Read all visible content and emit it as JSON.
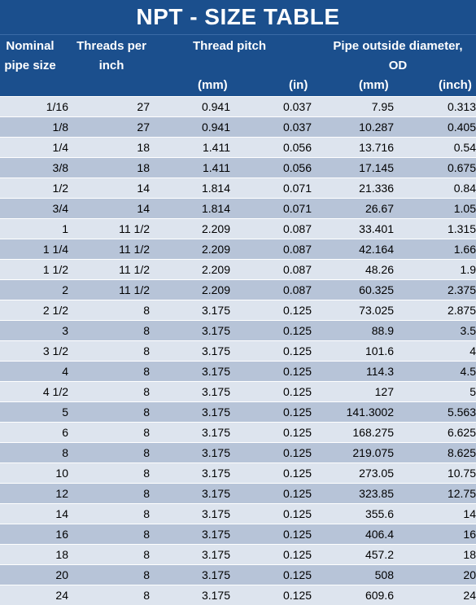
{
  "title": "NPT - SIZE TABLE",
  "headers": {
    "nominal_line1": "Nominal",
    "nominal_line2": "pipe size",
    "threads_line1": "Threads per",
    "threads_line2": "inch",
    "pitch": "Thread pitch",
    "od_line1": "Pipe outside diameter,",
    "od_line2": "OD",
    "unit_pitch_mm": "(mm)",
    "unit_pitch_in": "(in)",
    "unit_od_mm": "(mm)",
    "unit_od_inch": "(inch)"
  },
  "rows": [
    [
      "1/16",
      "27",
      "0.941",
      "0.037",
      "7.95",
      "0.313"
    ],
    [
      "1/8",
      "27",
      "0.941",
      "0.037",
      "10.287",
      "0.405"
    ],
    [
      "1/4",
      "18",
      "1.411",
      "0.056",
      "13.716",
      "0.54"
    ],
    [
      "3/8",
      "18",
      "1.411",
      "0.056",
      "17.145",
      "0.675"
    ],
    [
      "1/2",
      "14",
      "1.814",
      "0.071",
      "21.336",
      "0.84"
    ],
    [
      "3/4",
      "14",
      "1.814",
      "0.071",
      "26.67",
      "1.05"
    ],
    [
      "1",
      "11 1/2",
      "2.209",
      "0.087",
      "33.401",
      "1.315"
    ],
    [
      "1 1/4",
      "11 1/2",
      "2.209",
      "0.087",
      "42.164",
      "1.66"
    ],
    [
      "1 1/2",
      "11 1/2",
      "2.209",
      "0.087",
      "48.26",
      "1.9"
    ],
    [
      "2",
      "11 1/2",
      "2.209",
      "0.087",
      "60.325",
      "2.375"
    ],
    [
      "2 1/2",
      "8",
      "3.175",
      "0.125",
      "73.025",
      "2.875"
    ],
    [
      "3",
      "8",
      "3.175",
      "0.125",
      "88.9",
      "3.5"
    ],
    [
      "3 1/2",
      "8",
      "3.175",
      "0.125",
      "101.6",
      "4"
    ],
    [
      "4",
      "8",
      "3.175",
      "0.125",
      "114.3",
      "4.5"
    ],
    [
      "4 1/2",
      "8",
      "3.175",
      "0.125",
      "127",
      "5"
    ],
    [
      "5",
      "8",
      "3.175",
      "0.125",
      "141.3002",
      "5.563"
    ],
    [
      "6",
      "8",
      "3.175",
      "0.125",
      "168.275",
      "6.625"
    ],
    [
      "8",
      "8",
      "3.175",
      "0.125",
      "219.075",
      "8.625"
    ],
    [
      "10",
      "8",
      "3.175",
      "0.125",
      "273.05",
      "10.75"
    ],
    [
      "12",
      "8",
      "3.175",
      "0.125",
      "323.85",
      "12.75"
    ],
    [
      "14",
      "8",
      "3.175",
      "0.125",
      "355.6",
      "14"
    ],
    [
      "16",
      "8",
      "3.175",
      "0.125",
      "406.4",
      "16"
    ],
    [
      "18",
      "8",
      "3.175",
      "0.125",
      "457.2",
      "18"
    ],
    [
      "20",
      "8",
      "3.175",
      "0.125",
      "508",
      "20"
    ],
    [
      "24",
      "8",
      "3.175",
      "0.125",
      "609.6",
      "24"
    ]
  ],
  "colors": {
    "header_bg": "#1b4f8d",
    "row_light": "#dde4ee",
    "row_dark": "#b7c4d8"
  }
}
